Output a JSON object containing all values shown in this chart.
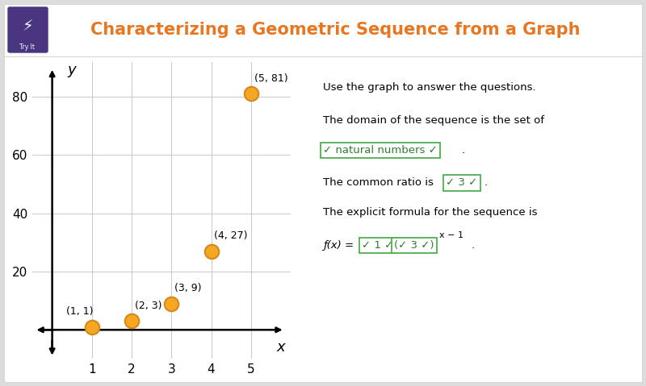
{
  "title": "Characterizing a Geometric Sequence from a Graph",
  "title_color": "#E87722",
  "points": [
    [
      1,
      1
    ],
    [
      2,
      3
    ],
    [
      3,
      9
    ],
    [
      4,
      27
    ],
    [
      5,
      81
    ]
  ],
  "point_labels": [
    "(1, 1)",
    "(2, 3)",
    "(3, 9)",
    "(4, 27)",
    "(5, 81)"
  ],
  "point_color": "#F5A623",
  "point_edge_color": "#D4891A",
  "xlim": [
    -0.5,
    6.0
  ],
  "ylim": [
    -10,
    92
  ],
  "xticks": [
    1,
    2,
    3,
    4,
    5
  ],
  "yticks": [
    20,
    40,
    60,
    80
  ],
  "xlabel": "x",
  "ylabel": "y",
  "graph_bg": "#ffffff",
  "panel_bg": "#ffffff",
  "outer_bg": "#dcdcdc",
  "grid_color": "#cccccc",
  "header_bg": "#ffffff",
  "icon_bg": "#4a3580",
  "dropdown_color": "#2e7d32",
  "dropdown_edge": "#4caf50"
}
